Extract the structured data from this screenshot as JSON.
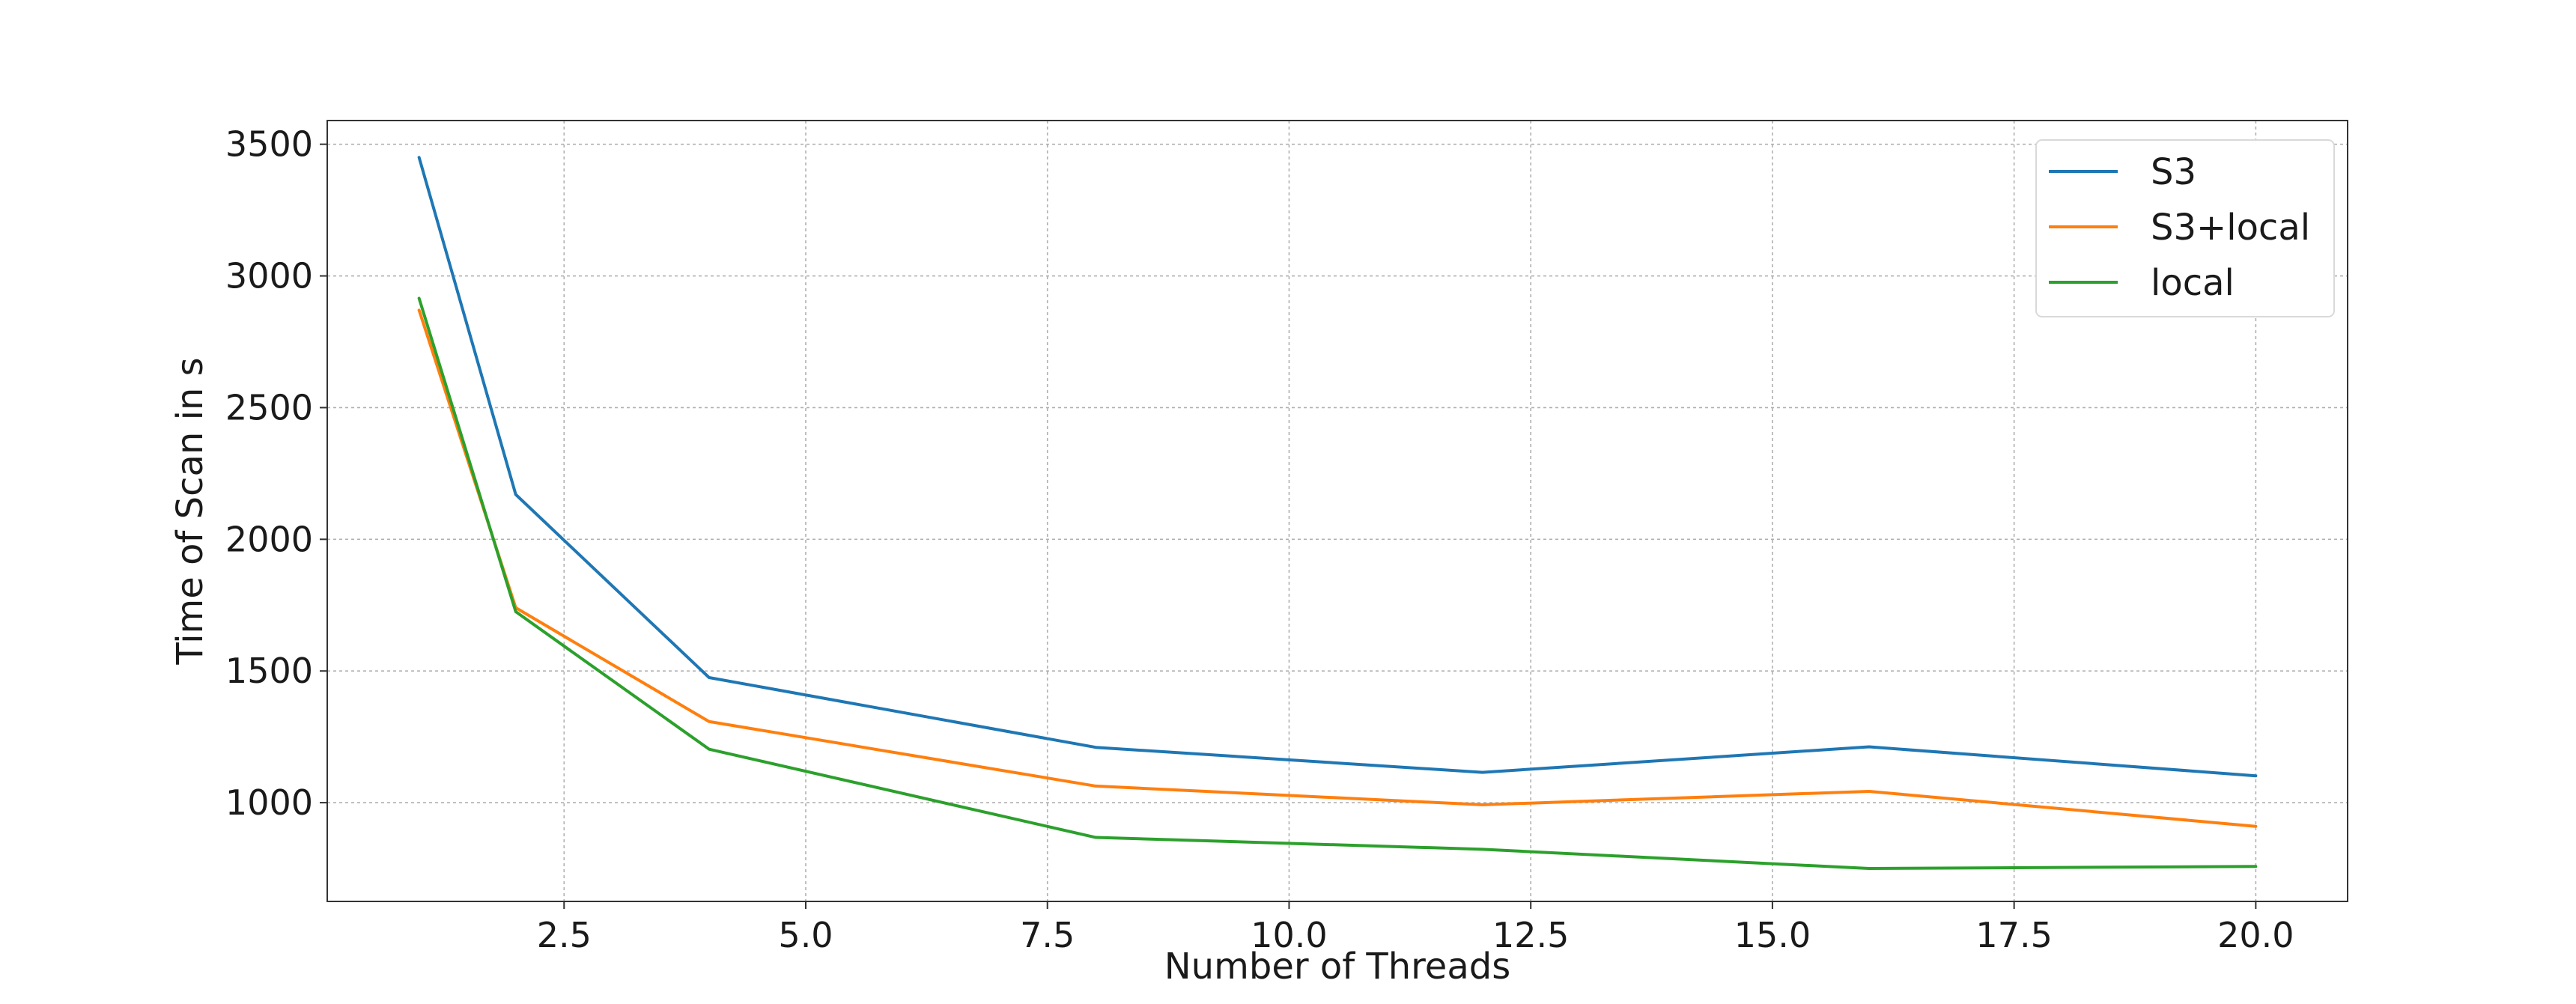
{
  "chart_data": {
    "type": "line",
    "title": "",
    "xlabel": "Number of Threads",
    "ylabel": "Time of Scan in s",
    "x": [
      1,
      2,
      4,
      8,
      12,
      16,
      20
    ],
    "series": [
      {
        "name": "S3",
        "color": "#1f77b4",
        "values": [
          3450,
          2170,
          1475,
          1210,
          1115,
          1212,
          1102
        ]
      },
      {
        "name": "S3+local",
        "color": "#ff7f0e",
        "values": [
          2870,
          1740,
          1308,
          1063,
          992,
          1043,
          910
        ]
      },
      {
        "name": "local",
        "color": "#2ca02c",
        "values": [
          2915,
          1725,
          1203,
          868,
          823,
          750,
          758
        ]
      }
    ],
    "xlim": [
      0.05,
      20.95
    ],
    "ylim": [
      625,
      3590
    ],
    "xticks": [
      2.5,
      5.0,
      7.5,
      10.0,
      12.5,
      15.0,
      17.5,
      20.0
    ],
    "xtick_labels": [
      "2.5",
      "5.0",
      "7.5",
      "10.0",
      "12.5",
      "15.0",
      "17.5",
      "20.0"
    ],
    "yticks": [
      1000,
      1500,
      2000,
      2500,
      3000,
      3500
    ],
    "ytick_labels": [
      "1000",
      "1500",
      "2000",
      "2500",
      "3000",
      "3500"
    ],
    "grid": true,
    "legend_position": "top-right"
  }
}
